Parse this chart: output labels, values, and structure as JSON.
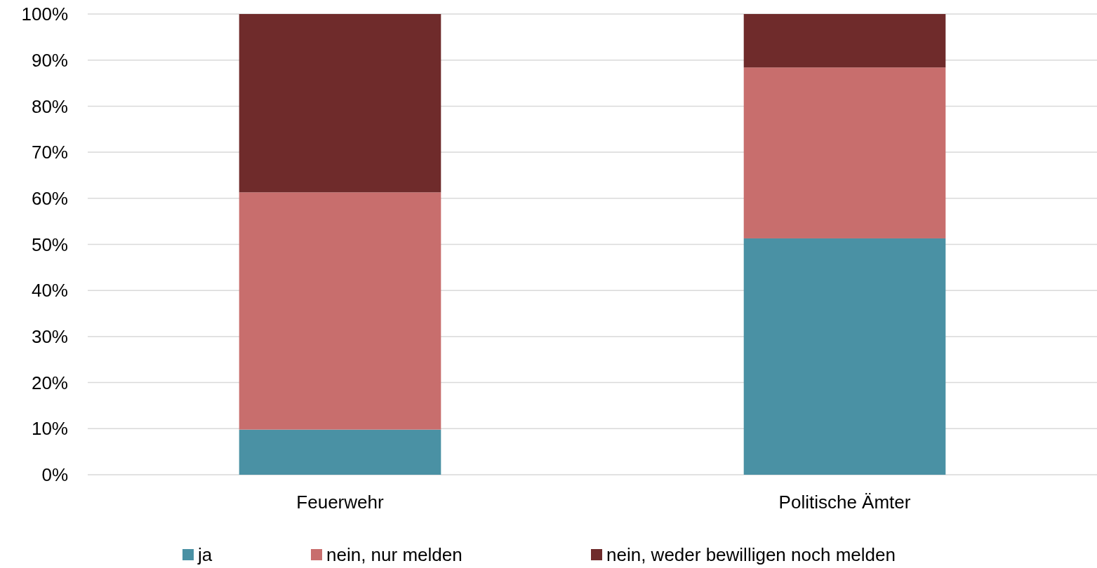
{
  "chart_data": {
    "type": "bar",
    "stacked": true,
    "categories": [
      "Feuerwehr",
      "Politische Ämter"
    ],
    "series": [
      {
        "name": "ja",
        "color": "#4a91a4",
        "values": [
          9.8,
          51.3
        ]
      },
      {
        "name": "nein, nur melden",
        "color": "#c86e6d",
        "values": [
          51.5,
          37.1
        ]
      },
      {
        "name": "nein, weder bewilligen noch melden",
        "color": "#6f2b2b",
        "values": [
          38.7,
          11.6
        ]
      }
    ],
    "ylim": [
      0,
      100
    ],
    "yticks": [
      {
        "value": 0,
        "label": "0%"
      },
      {
        "value": 10,
        "label": "10%"
      },
      {
        "value": 20,
        "label": "20%"
      },
      {
        "value": 30,
        "label": "30%"
      },
      {
        "value": 40,
        "label": "40%"
      },
      {
        "value": 50,
        "label": "50%"
      },
      {
        "value": 60,
        "label": "60%"
      },
      {
        "value": 70,
        "label": "70%"
      },
      {
        "value": 80,
        "label": "80%"
      },
      {
        "value": 90,
        "label": "90%"
      },
      {
        "value": 100,
        "label": "100%"
      }
    ],
    "grid": "y",
    "legend": "bottom"
  }
}
